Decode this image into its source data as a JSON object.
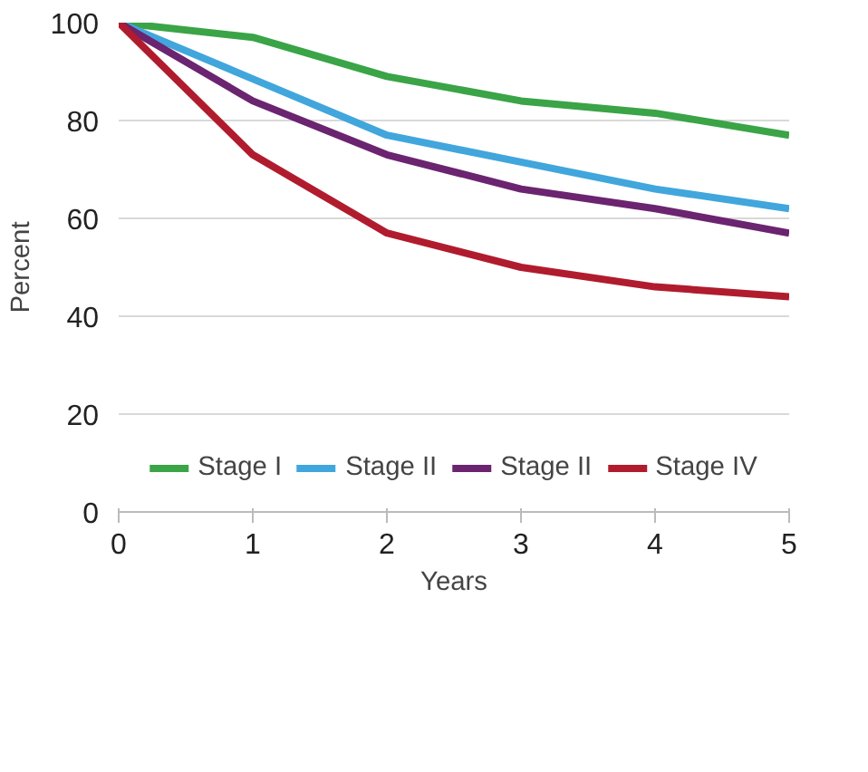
{
  "chart_data": {
    "type": "line",
    "xlabel": "Years",
    "ylabel": "Percent",
    "x": [
      0,
      1,
      2,
      3,
      4,
      5
    ],
    "xlim": [
      0,
      5
    ],
    "xticks": [
      0,
      1,
      2,
      3,
      4,
      5
    ],
    "ylim": [
      0,
      100
    ],
    "yticks": [
      0,
      20,
      40,
      60,
      80,
      100
    ],
    "grid": "y",
    "legend": "bottom",
    "line_style": "solid",
    "marker": "none",
    "series": [
      {
        "name": "Stage I",
        "color": "#3aa447",
        "values": [
          100,
          97,
          89,
          84,
          81.5,
          77
        ]
      },
      {
        "name": "Stage II",
        "color": "#41a6dc",
        "values": [
          100,
          88.5,
          77,
          71.5,
          66,
          62
        ]
      },
      {
        "name": "Stage II",
        "color": "#6b2470",
        "values": [
          100,
          84,
          73,
          66,
          62,
          57
        ]
      },
      {
        "name": "Stage IV",
        "color": "#b01c2e",
        "values": [
          100,
          73,
          57,
          50,
          46,
          44
        ]
      }
    ]
  }
}
